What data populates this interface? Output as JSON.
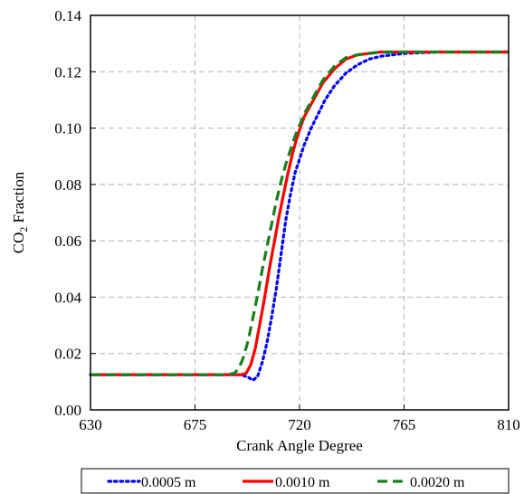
{
  "chart_data": {
    "type": "line",
    "xlabel": "Crank Angle Degree",
    "ylabel_main": "CO",
    "ylabel_sub": "2",
    "ylabel_tail": " Fraction",
    "xlim": [
      630,
      810
    ],
    "ylim": [
      0,
      0.14
    ],
    "x_ticks": [
      "630",
      "675",
      "720",
      "765",
      "810"
    ],
    "y_ticks": [
      "0.00",
      "0.02",
      "0.04",
      "0.06",
      "0.08",
      "0.10",
      "0.12",
      "0.14"
    ],
    "grid": true,
    "legend_position": "bottom",
    "series": [
      {
        "name": "0.0005 m",
        "color": "#0000ff",
        "style": "dotted",
        "x": [
          630,
          690,
          695,
          698,
          700,
          702,
          704,
          706,
          708,
          710,
          712,
          714,
          716,
          718,
          720,
          722,
          725,
          728,
          731,
          735,
          740,
          745,
          750,
          755,
          760,
          765,
          780,
          810
        ],
        "y": [
          0.0125,
          0.0125,
          0.0125,
          0.0115,
          0.0105,
          0.012,
          0.017,
          0.024,
          0.033,
          0.043,
          0.055,
          0.067,
          0.076,
          0.084,
          0.089,
          0.094,
          0.1,
          0.105,
          0.11,
          0.115,
          0.1195,
          0.1225,
          0.1245,
          0.1255,
          0.126,
          0.1265,
          0.127,
          0.127
        ]
      },
      {
        "name": "0.0010 m",
        "color": "#ff0000",
        "style": "solid",
        "x": [
          630,
          692,
          695,
          697,
          699,
          701,
          703,
          705,
          707,
          709,
          711,
          713,
          715,
          717,
          719,
          722,
          726,
          730,
          735,
          740,
          745,
          750,
          755,
          760,
          765,
          780,
          810
        ],
        "y": [
          0.0125,
          0.0125,
          0.0125,
          0.013,
          0.016,
          0.022,
          0.031,
          0.04,
          0.05,
          0.059,
          0.068,
          0.076,
          0.084,
          0.091,
          0.097,
          0.104,
          0.11,
          0.116,
          0.121,
          0.1245,
          0.126,
          0.1265,
          0.127,
          0.127,
          0.127,
          0.127,
          0.127
        ]
      },
      {
        "name": "0.0020 m",
        "color": "#1a7f1a",
        "style": "dashed",
        "x": [
          630,
          689,
          692,
          694,
          696,
          698,
          700,
          702,
          704,
          706,
          708,
          710,
          712,
          714,
          716,
          718,
          720,
          722,
          726,
          730,
          735,
          740,
          745,
          750,
          755,
          760,
          765,
          780,
          810
        ],
        "y": [
          0.0125,
          0.0125,
          0.013,
          0.015,
          0.019,
          0.025,
          0.033,
          0.041,
          0.05,
          0.058,
          0.066,
          0.074,
          0.081,
          0.087,
          0.092,
          0.097,
          0.101,
          0.105,
          0.111,
          0.117,
          0.122,
          0.125,
          0.126,
          0.1265,
          0.127,
          0.127,
          0.127,
          0.127,
          0.127
        ]
      }
    ]
  }
}
